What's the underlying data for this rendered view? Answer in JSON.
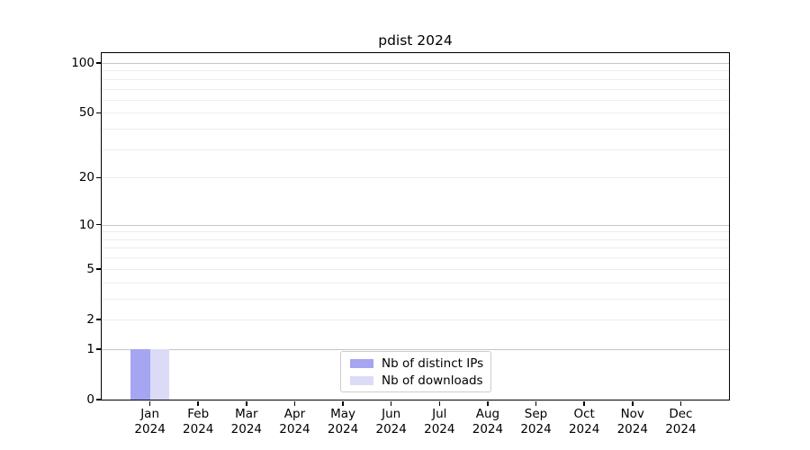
{
  "chart_data": {
    "type": "bar",
    "title": "pdist 2024",
    "categories": [
      "Jan",
      "Feb",
      "Mar",
      "Apr",
      "May",
      "Jun",
      "Jul",
      "Aug",
      "Sep",
      "Oct",
      "Nov",
      "Dec"
    ],
    "category_year": "2024",
    "series": [
      {
        "name": "Nb of distinct IPs",
        "color": "#a5a5f2",
        "values": [
          1,
          0,
          0,
          0,
          0,
          0,
          0,
          0,
          0,
          0,
          0,
          0
        ]
      },
      {
        "name": "Nb of downloads",
        "color": "#dbdbf8",
        "values": [
          1,
          0,
          0,
          0,
          0,
          0,
          0,
          0,
          0,
          0,
          0,
          0
        ]
      }
    ],
    "y_scale": "log10(1+y)",
    "ylim": [
      0,
      115
    ],
    "y_tick_labels": [
      0,
      1,
      2,
      5,
      10,
      20,
      50,
      100
    ],
    "y_major_gridlines": [
      1,
      10,
      100
    ],
    "y_minor_gridlines": [
      2,
      3,
      4,
      5,
      6,
      7,
      8,
      9,
      20,
      30,
      40,
      50,
      60,
      70,
      80,
      90
    ],
    "grid": true,
    "legend_position": "lower center"
  },
  "colors": {
    "background": "#ffffff",
    "spine": "#000000",
    "text": "#000000",
    "major_grid": "#c6c6c6",
    "minor_grid": "#ededed",
    "legend_border": "#cccccc",
    "bar_distinct_ips": "#a5a5f2",
    "bar_downloads": "#dbdbf8"
  }
}
